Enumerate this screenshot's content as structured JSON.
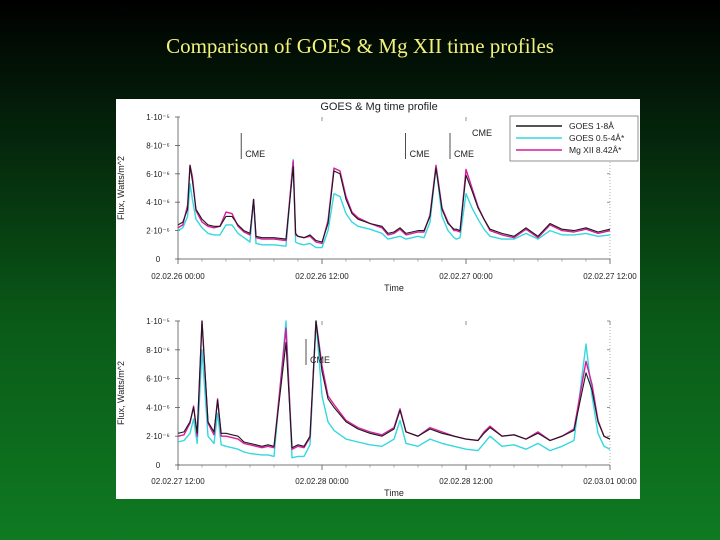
{
  "slide": {
    "title": "Comparison of GOES & Mg XII time profiles"
  },
  "figure": {
    "title": "GOES & Mg time profile"
  },
  "colors": {
    "goes_1_8": "#1a1a1a",
    "goes_05_4": "#35d8e0",
    "mgxii": "#d81c9c"
  },
  "legend": [
    {
      "label": "GOES 1-8Å",
      "color": "#1a1a1a"
    },
    {
      "label": "GOES 0.5-4Å*",
      "color": "#35d8e0"
    },
    {
      "label": "Mg XII 8.42Å*",
      "color": "#d81c9c"
    }
  ],
  "chart_data": [
    {
      "type": "line",
      "panel": "top",
      "title": "GOES & Mg time profile",
      "xlabel": "Time",
      "ylabel": "Flux, Watts/m^2",
      "xlim": [
        0,
        36
      ],
      "ylim": [
        0,
        10
      ],
      "x_tick_labels": [
        {
          "x": 0,
          "label": "02.02.26 00:00"
        },
        {
          "x": 12,
          "label": "02.02.26 12:00"
        },
        {
          "x": 24,
          "label": "02.02.27 00:00"
        },
        {
          "x": 36,
          "label": "02.02.27 12:00"
        }
      ],
      "y_tick_labels": [
        {
          "y": 0,
          "label": "0"
        },
        {
          "y": 2,
          "label": "2·10⁻⁶"
        },
        {
          "y": 4,
          "label": "4·10⁻⁶"
        },
        {
          "y": 6,
          "label": "6·10⁻⁶"
        },
        {
          "y": 8,
          "label": "8·10⁻⁶"
        },
        {
          "y": 10,
          "label": "1·10⁻⁵"
        }
      ],
      "annotations": [
        {
          "text": "CME",
          "x": 5.6
        },
        {
          "text": "CME",
          "x": 19.3
        },
        {
          "text": "CME",
          "x": 23.0
        },
        {
          "text": "CME",
          "x": 24.5
        }
      ],
      "series": [
        {
          "name": "GOES 1-8Å",
          "x": [
            0,
            0.4,
            0.8,
            1.0,
            1.2,
            1.5,
            2,
            2.5,
            3,
            3.5,
            4,
            4.5,
            5,
            5.5,
            6,
            6.3,
            6.5,
            7,
            8,
            9,
            9.6,
            9.8,
            10,
            10.5,
            11,
            11.5,
            12,
            12.5,
            13,
            13.5,
            14,
            14.5,
            15,
            16,
            17,
            17.5,
            18,
            18.5,
            19,
            20,
            20.5,
            21,
            21.5,
            22,
            22.5,
            23,
            23.2,
            23.5,
            24,
            24.5,
            25,
            25.5,
            26,
            27,
            28,
            29,
            30,
            31,
            32,
            33,
            34,
            35,
            36
          ],
          "y": [
            2.4,
            2.6,
            3.5,
            6.6,
            5.5,
            3.5,
            2.8,
            2.4,
            2.3,
            2.3,
            3.0,
            3.0,
            2.4,
            2.0,
            1.8,
            4.2,
            1.6,
            1.5,
            1.5,
            1.4,
            6.5,
            1.8,
            1.6,
            1.5,
            1.7,
            1.3,
            1.2,
            2.5,
            6.2,
            6.0,
            4.2,
            3.2,
            2.8,
            2.5,
            2.3,
            1.8,
            1.9,
            2.2,
            1.8,
            2.0,
            2.0,
            3.0,
            6.4,
            3.5,
            2.5,
            2.1,
            2.1,
            2.0,
            5.9,
            4.8,
            3.6,
            2.8,
            2.1,
            1.8,
            1.6,
            2.2,
            1.6,
            2.5,
            2.1,
            2.0,
            2.2,
            1.9,
            2.1
          ]
        },
        {
          "name": "GOES 0.5-4Å*",
          "x": [
            0,
            0.4,
            0.8,
            1.0,
            1.2,
            1.5,
            2,
            2.5,
            3,
            3.5,
            4,
            4.5,
            5,
            5.5,
            6,
            6.3,
            6.5,
            7,
            8,
            9,
            9.6,
            9.8,
            10,
            10.5,
            11,
            11.5,
            12,
            12.5,
            13,
            13.5,
            14,
            14.5,
            15,
            16,
            17,
            17.5,
            18,
            18.5,
            19,
            20,
            20.5,
            21,
            21.5,
            22,
            22.5,
            23,
            23.2,
            23.5,
            24,
            24.5,
            25,
            25.5,
            26,
            27,
            28,
            29,
            30,
            31,
            32,
            33,
            34,
            35,
            36
          ],
          "y": [
            2.0,
            2.2,
            3.0,
            5.3,
            4.2,
            2.8,
            2.2,
            1.8,
            1.7,
            1.7,
            2.4,
            2.4,
            1.8,
            1.5,
            1.2,
            4.2,
            1.1,
            1.0,
            1.0,
            0.9,
            7.0,
            1.2,
            1.1,
            1.0,
            1.1,
            0.8,
            0.8,
            2.0,
            4.6,
            4.4,
            3.2,
            2.6,
            2.3,
            2.1,
            1.8,
            1.4,
            1.5,
            1.6,
            1.4,
            1.6,
            1.5,
            2.6,
            6.5,
            3.0,
            2.0,
            1.5,
            1.4,
            1.5,
            4.6,
            3.6,
            2.8,
            2.1,
            1.6,
            1.4,
            1.4,
            1.8,
            1.4,
            2.0,
            1.7,
            1.7,
            1.8,
            1.6,
            1.7
          ]
        },
        {
          "name": "Mg XII 8.42Å*",
          "x": [
            0,
            0.4,
            0.8,
            1.0,
            1.2,
            1.5,
            2,
            2.5,
            3,
            3.5,
            4,
            4.5,
            5,
            5.5,
            6,
            6.3,
            6.5,
            7,
            8,
            9,
            9.6,
            9.8,
            10,
            10.5,
            11,
            11.5,
            12,
            12.5,
            13,
            13.5,
            14,
            14.5,
            15,
            16,
            17,
            17.5,
            18,
            18.5,
            19,
            20,
            20.5,
            21,
            21.5,
            22,
            22.5,
            23,
            23.2,
            23.5,
            24,
            24.5,
            25,
            25.5,
            26,
            27,
            28,
            29,
            30,
            31,
            32,
            33,
            34,
            35,
            36
          ],
          "y": [
            2.2,
            2.4,
            3.8,
            6.6,
            5.8,
            3.4,
            2.6,
            2.3,
            2.2,
            2.3,
            3.3,
            3.2,
            2.3,
            1.9,
            1.7,
            4.2,
            1.5,
            1.4,
            1.4,
            1.3,
            6.9,
            1.7,
            1.6,
            1.5,
            1.6,
            1.2,
            1.1,
            2.7,
            6.4,
            6.2,
            4.4,
            3.3,
            2.9,
            2.5,
            2.2,
            1.7,
            1.8,
            2.1,
            1.7,
            1.9,
            1.9,
            3.1,
            6.6,
            3.6,
            2.6,
            2.0,
            2.0,
            1.9,
            6.3,
            5.0,
            3.7,
            2.8,
            2.0,
            1.7,
            1.5,
            2.1,
            1.5,
            2.4,
            2.0,
            1.9,
            2.1,
            1.8,
            2.0
          ]
        }
      ]
    },
    {
      "type": "line",
      "panel": "bottom",
      "xlabel": "Time",
      "ylabel": "Flux, Watts/m^2",
      "xlim": [
        0,
        36
      ],
      "ylim": [
        0,
        10
      ],
      "x_tick_labels": [
        {
          "x": 0,
          "label": "02.02.27 12:00"
        },
        {
          "x": 12,
          "label": "02.02.28 00:00"
        },
        {
          "x": 24,
          "label": "02.02.28 12:00"
        },
        {
          "x": 36,
          "label": "02.03.01 00:00"
        }
      ],
      "y_tick_labels": [
        {
          "y": 0,
          "label": "0"
        },
        {
          "y": 2,
          "label": "2·10⁻⁶"
        },
        {
          "y": 4,
          "label": "4·10⁻⁶"
        },
        {
          "y": 6,
          "label": "6·10⁻⁶"
        },
        {
          "y": 8,
          "label": "8·10⁻⁶"
        },
        {
          "y": 10,
          "label": "1·10⁻⁵"
        }
      ],
      "annotations": [
        {
          "text": "CME",
          "x": 11.0
        }
      ],
      "series": [
        {
          "name": "GOES 1-8Å",
          "x": [
            0,
            0.5,
            1,
            1.3,
            1.6,
            2,
            2.5,
            3,
            3.3,
            3.6,
            4,
            4.5,
            5,
            5.5,
            6,
            7,
            7.5,
            8,
            9,
            9.5,
            10,
            10.5,
            11,
            11.5,
            12,
            12.5,
            13,
            14,
            15,
            16,
            17,
            18,
            18.5,
            19,
            20,
            21,
            22,
            23,
            24,
            25,
            25.5,
            26,
            27,
            28,
            29,
            30,
            31,
            32,
            33,
            34,
            34.5,
            35,
            35.5,
            36
          ],
          "y": [
            2.2,
            2.3,
            3.0,
            4.0,
            2.2,
            10,
            3.0,
            2.3,
            4.5,
            2.2,
            2.2,
            2.1,
            2.0,
            1.6,
            1.5,
            1.3,
            1.4,
            1.3,
            8.5,
            1.2,
            1.4,
            1.3,
            2.0,
            10,
            6.5,
            4.6,
            4.0,
            3.0,
            2.5,
            2.2,
            2.0,
            2.5,
            3.8,
            2.3,
            2.0,
            2.5,
            2.2,
            2.0,
            1.8,
            1.7,
            2.2,
            2.6,
            2.0,
            2.1,
            1.8,
            2.2,
            1.7,
            2.0,
            2.4,
            6.4,
            5.2,
            3.0,
            2.0,
            1.8
          ]
        },
        {
          "name": "GOES 0.5-4Å*",
          "x": [
            0,
            0.5,
            1,
            1.3,
            1.6,
            2,
            2.5,
            3,
            3.3,
            3.6,
            4,
            4.5,
            5,
            5.5,
            6,
            7,
            7.5,
            8,
            9,
            9.5,
            10,
            10.5,
            11,
            11.5,
            12,
            12.5,
            13,
            14,
            15,
            16,
            17,
            18,
            18.5,
            19,
            20,
            21,
            22,
            23,
            24,
            25,
            25.5,
            26,
            27,
            28,
            29,
            30,
            31,
            32,
            33,
            34,
            34.5,
            35,
            35.5,
            36
          ],
          "y": [
            1.6,
            1.7,
            2.2,
            3.2,
            1.5,
            8.0,
            2.0,
            1.5,
            3.6,
            1.4,
            1.3,
            1.2,
            1.1,
            0.9,
            0.8,
            0.7,
            0.7,
            0.6,
            10,
            0.5,
            0.6,
            0.6,
            1.4,
            10,
            4.8,
            3.0,
            2.4,
            1.8,
            1.6,
            1.4,
            1.3,
            1.8,
            3.1,
            1.5,
            1.3,
            1.8,
            1.5,
            1.3,
            1.1,
            1.0,
            1.5,
            2.0,
            1.3,
            1.4,
            1.1,
            1.5,
            1.0,
            1.3,
            1.7,
            8.4,
            4.8,
            2.2,
            1.3,
            1.1
          ]
        },
        {
          "name": "Mg XII 8.42Å*",
          "x": [
            0,
            0.5,
            1,
            1.3,
            1.6,
            2,
            2.5,
            3,
            3.3,
            3.6,
            4,
            4.5,
            5,
            5.5,
            6,
            7,
            7.5,
            8,
            9,
            9.5,
            10,
            10.5,
            11,
            11.5,
            12,
            12.5,
            13,
            14,
            15,
            16,
            17,
            18,
            18.5,
            19,
            20,
            21,
            22,
            23,
            24,
            25,
            25.5,
            26,
            27,
            28,
            29,
            30,
            31,
            32,
            33,
            34,
            34.5,
            35,
            35.5,
            36
          ],
          "y": [
            2.0,
            2.1,
            2.9,
            4.1,
            2.0,
            10,
            2.9,
            2.1,
            4.6,
            2.0,
            2.0,
            1.9,
            1.8,
            1.5,
            1.4,
            1.2,
            1.3,
            1.2,
            9.5,
            1.1,
            1.3,
            1.2,
            1.9,
            10,
            6.9,
            4.8,
            4.2,
            3.1,
            2.6,
            2.3,
            2.1,
            2.6,
            3.9,
            2.3,
            2.0,
            2.6,
            2.3,
            2.0,
            1.8,
            1.7,
            2.3,
            2.7,
            2.0,
            2.1,
            1.8,
            2.3,
            1.7,
            2.0,
            2.5,
            7.2,
            5.6,
            3.1,
            2.0,
            1.8
          ]
        }
      ]
    }
  ]
}
